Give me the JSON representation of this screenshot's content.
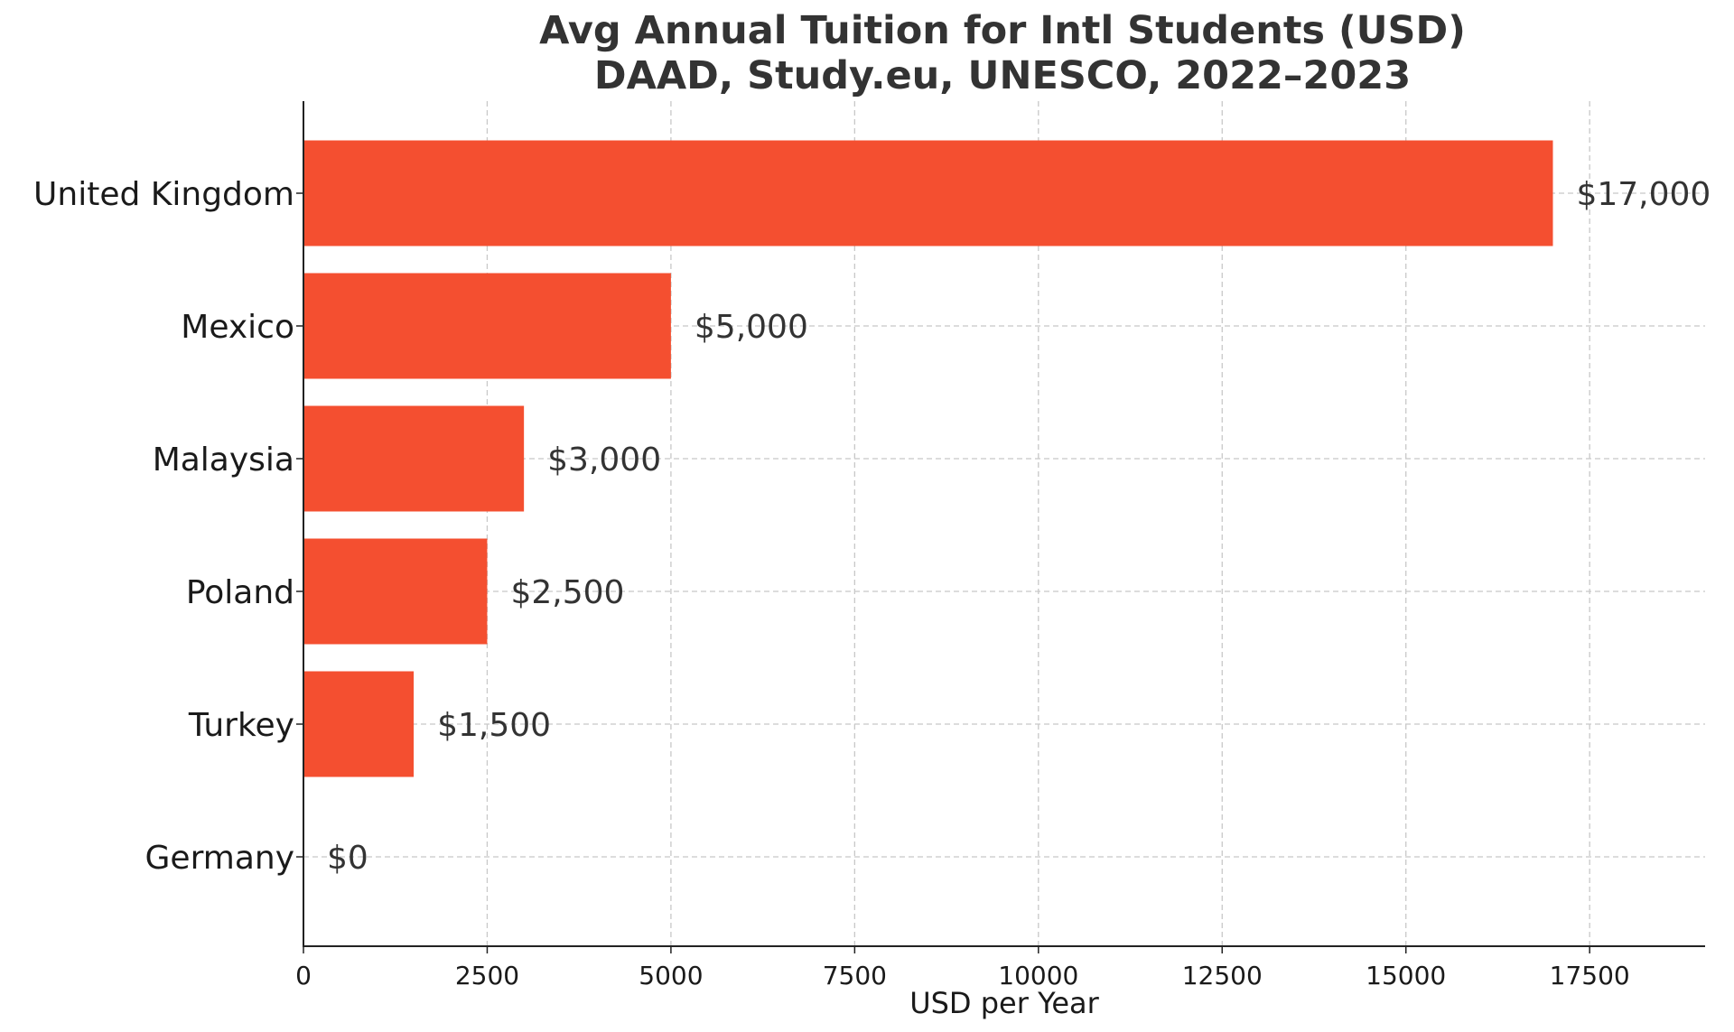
{
  "chart_data": {
    "type": "bar",
    "orientation": "horizontal",
    "title": "Avg Annual Tuition for Intl Students (USD)",
    "subtitle": "DAAD, Study.eu, UNESCO, 2022–2023",
    "xlabel": "USD per Year",
    "ylabel": "",
    "xlim": [
      0,
      19000
    ],
    "x_ticks": [
      "0",
      "2500",
      "5000",
      "7500",
      "10000",
      "12500",
      "15000",
      "17500"
    ],
    "categories": [
      "United Kingdom",
      "Mexico",
      "Malaysia",
      "Poland",
      "Turkey",
      "Germany"
    ],
    "values": [
      17000,
      5000,
      3000,
      2500,
      1500,
      0
    ],
    "data_labels": [
      "$17,000",
      "$5,000",
      "$3,000",
      "$2,500",
      "$1,500",
      "$0"
    ],
    "bar_color": "#f44f30",
    "grid": true
  }
}
